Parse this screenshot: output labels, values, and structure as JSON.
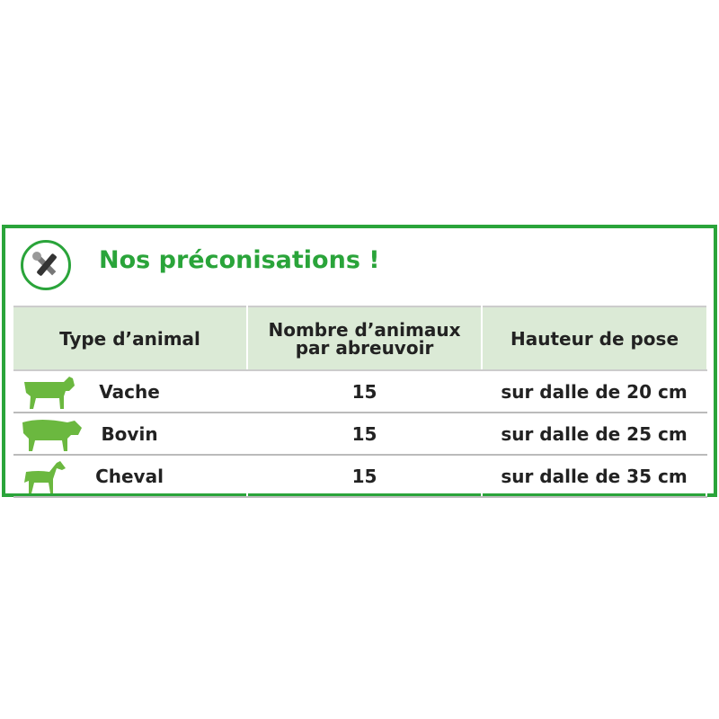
{
  "title": "Nos préconisations !",
  "icon": "tools-icon",
  "accent": "#2aa43a",
  "headers": [
    "Type d’animal",
    "Nombre d’animaux par abreuvoir",
    "Hauteur de pose"
  ],
  "rows": [
    {
      "animal": "Vache",
      "icon": "cow-icon",
      "count": "15",
      "height": "sur dalle de 20 cm"
    },
    {
      "animal": "Bovin",
      "icon": "bull-icon",
      "count": "15",
      "height": "sur dalle de 25 cm"
    },
    {
      "animal": "Cheval",
      "icon": "horse-icon",
      "count": "15",
      "height": "sur dalle de 35 cm"
    }
  ]
}
